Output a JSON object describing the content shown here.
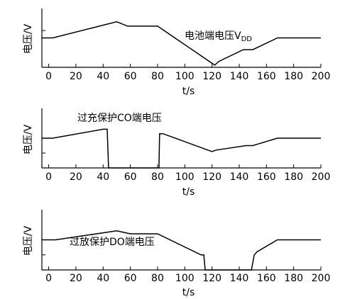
{
  "chart_data": [
    {
      "type": "line",
      "annotation": "电池端电压V",
      "annotation_sub": "DD",
      "xlabel": "t/s",
      "ylabel": "电压/V",
      "xlim": [
        -5,
        200
      ],
      "ylim": [
        0,
        4
      ],
      "xticks": [
        0,
        20,
        40,
        60,
        80,
        100,
        120,
        140,
        160,
        180,
        200
      ],
      "yticks": [
        2,
        2.5
      ],
      "grid": false,
      "series": [
        {
          "x": [
            -5,
            3,
            50,
            58,
            80,
            122,
            125,
            143,
            150,
            168,
            200
          ],
          "y": [
            2.0,
            2.0,
            3.1,
            2.8,
            2.8,
            0.15,
            0.4,
            1.2,
            1.2,
            2.0,
            2.0
          ]
        }
      ]
    },
    {
      "type": "line",
      "annotation": "过充保护CO端电压",
      "xlabel": "t/s",
      "ylabel": "电压/V",
      "xlim": [
        -5,
        200
      ],
      "ylim": [
        0,
        4
      ],
      "xticks": [
        0,
        20,
        40,
        60,
        80,
        100,
        120,
        140,
        160,
        180,
        200
      ],
      "yticks": [
        1,
        2
      ],
      "grid": false,
      "series": [
        {
          "x": [
            -5,
            3,
            40,
            43,
            44,
            81,
            81.5,
            84,
            120,
            123,
            145,
            150,
            168,
            200
          ],
          "y": [
            2.0,
            2.0,
            2.6,
            2.6,
            0,
            0,
            2.3,
            2.3,
            1.1,
            1.2,
            1.5,
            1.5,
            2.0,
            2.0
          ]
        }
      ]
    },
    {
      "type": "line",
      "annotation": "过放保护DO端电压",
      "xlabel": "t/s",
      "ylabel": "电压/V",
      "xlim": [
        -5,
        200
      ],
      "ylim": [
        0,
        4
      ],
      "xticks": [
        0,
        20,
        40,
        60,
        80,
        100,
        120,
        140,
        160,
        180,
        200
      ],
      "yticks": [
        1,
        2
      ],
      "grid": false,
      "series": [
        {
          "x": [
            -5,
            5,
            50,
            60,
            80,
            112,
            114,
            115,
            149,
            151,
            153,
            168,
            200
          ],
          "y": [
            2.0,
            2.0,
            2.6,
            2.4,
            2.4,
            1.0,
            1.0,
            0,
            0,
            1.0,
            1.2,
            2.0,
            2.0
          ]
        }
      ]
    }
  ]
}
